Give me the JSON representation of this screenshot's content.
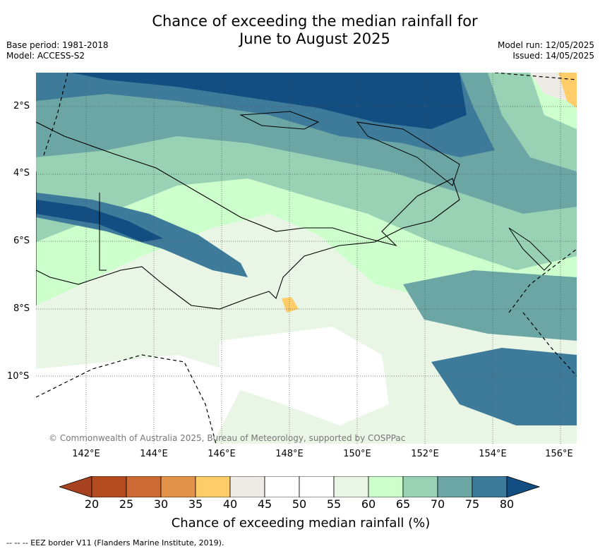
{
  "title_line1": "Chance of exceeding the median rainfall for",
  "title_line2": "June to August 2025",
  "base_period": "Base period: 1981-2018",
  "model": "Model: ACCESS-S2",
  "model_run": "Model run: 12/05/2025",
  "issued": "Issued: 14/05/2025",
  "copyright": "© Commonwealth of Australia 2025, Bureau of Meteorology, supported by COSPPac",
  "lat_labels": [
    "2°S",
    "4°S",
    "6°S",
    "8°S",
    "10°S"
  ],
  "lon_labels": [
    "142°E",
    "144°E",
    "146°E",
    "148°E",
    "150°E",
    "152°E",
    "154°E",
    "156°E"
  ],
  "colorbar": {
    "ticks": [
      "20",
      "25",
      "30",
      "35",
      "40",
      "45",
      "50",
      "55",
      "60",
      "65",
      "70",
      "75",
      "80"
    ],
    "colors": [
      "#a6421f",
      "#b34a20",
      "#cc6a33",
      "#e3924a",
      "#fecd6a",
      "#eeebe7",
      "#ffffff",
      "#ffffff",
      "#e9f6e6",
      "#ccffcc",
      "#99d1b5",
      "#6ba6a5",
      "#3e7a9a",
      "#134e83"
    ],
    "title": "Chance of exceeding median rainfall (%)"
  },
  "footer": "--  --  -- EEZ border V11 (Flanders Marine Institute, 2019)."
}
